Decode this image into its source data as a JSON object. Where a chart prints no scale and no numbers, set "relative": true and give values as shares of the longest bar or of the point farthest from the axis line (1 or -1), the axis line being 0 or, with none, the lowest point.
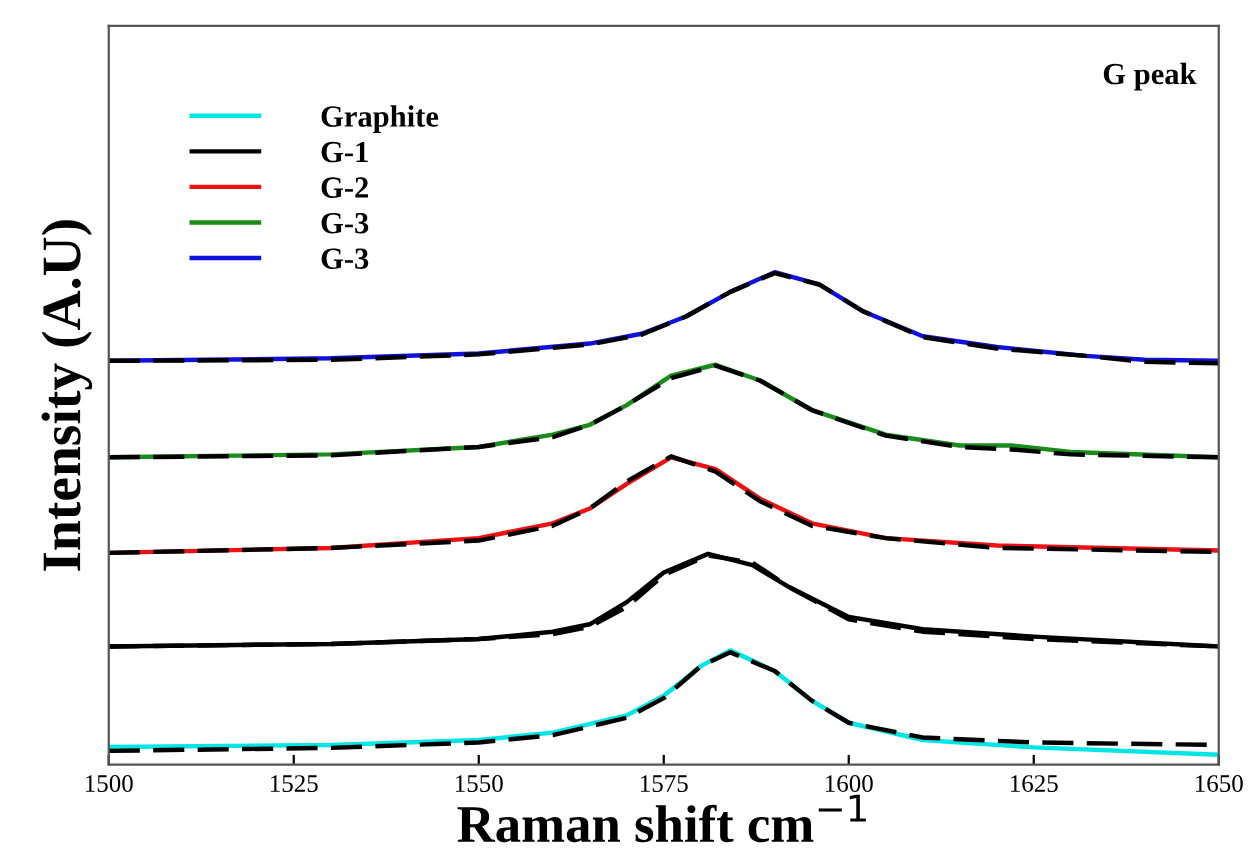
{
  "chart_data": {
    "type": "line",
    "relative": true,
    "xlabel": "Raman shift cm$^{−1}$",
    "ylabel": "Intensity (A.U)",
    "annotations": [
      "G peak"
    ],
    "xlim": [
      1500,
      1650
    ],
    "xticks": [
      1500,
      1525,
      1550,
      1575,
      1600,
      1625,
      1650
    ],
    "tick_labels": "x",
    "legend": "top left",
    "line_style": "solid",
    "series": [
      {
        "name": "Graphite",
        "color": "#00e5e5",
        "x": [
          1500,
          1530,
          1550,
          1560,
          1570,
          1575,
          1580,
          1584,
          1590,
          1595,
          1600,
          1610,
          1625,
          1650
        ],
        "values": [
          0.036,
          0.04,
          0.05,
          0.065,
          0.1,
          0.14,
          0.2,
          0.232,
          0.19,
          0.13,
          0.085,
          0.05,
          0.035,
          0.02
        ]
      },
      {
        "color": "#000000",
        "line_style": "dashed",
        "x": [
          1500,
          1530,
          1550,
          1560,
          1570,
          1575,
          1580,
          1584,
          1590,
          1595,
          1600,
          1610,
          1625,
          1650
        ],
        "values": [
          0.028,
          0.034,
          0.045,
          0.06,
          0.095,
          0.135,
          0.2,
          0.228,
          0.19,
          0.13,
          0.085,
          0.055,
          0.045,
          0.04
        ]
      },
      {
        "name": "G-1",
        "color": "#000000",
        "x": [
          1500,
          1530,
          1550,
          1560,
          1565,
          1570,
          1575,
          1581,
          1587,
          1592,
          1600,
          1610,
          1625,
          1650
        ],
        "values": [
          0.24,
          0.245,
          0.255,
          0.27,
          0.285,
          0.33,
          0.39,
          0.428,
          0.405,
          0.36,
          0.3,
          0.275,
          0.26,
          0.24
        ]
      },
      {
        "color": "#000000",
        "line_style": "dashed",
        "x": [
          1500,
          1530,
          1550,
          1560,
          1565,
          1570,
          1575,
          1581,
          1587,
          1592,
          1600,
          1610,
          1625,
          1650
        ],
        "values": [
          0.24,
          0.245,
          0.255,
          0.265,
          0.28,
          0.32,
          0.385,
          0.425,
          0.41,
          0.36,
          0.295,
          0.27,
          0.255,
          0.24
        ]
      },
      {
        "name": "G-2",
        "color": "#ee1111",
        "x": [
          1500,
          1530,
          1550,
          1560,
          1565,
          1570,
          1576,
          1582,
          1588,
          1595,
          1605,
          1620,
          1650
        ],
        "values": [
          0.43,
          0.44,
          0.46,
          0.49,
          0.52,
          0.57,
          0.624,
          0.6,
          0.54,
          0.49,
          0.46,
          0.445,
          0.435
        ]
      },
      {
        "color": "#000000",
        "line_style": "dashed",
        "x": [
          1500,
          1530,
          1550,
          1560,
          1565,
          1570,
          1576,
          1582,
          1588,
          1595,
          1605,
          1620,
          1650
        ],
        "values": [
          0.43,
          0.44,
          0.455,
          0.485,
          0.52,
          0.575,
          0.626,
          0.595,
          0.535,
          0.485,
          0.46,
          0.44,
          0.432
        ]
      },
      {
        "name": "G-3",
        "color": "#1a8c1a",
        "x": [
          1500,
          1530,
          1550,
          1560,
          1565,
          1570,
          1576,
          1582,
          1588,
          1595,
          1605,
          1615,
          1622,
          1630,
          1650
        ],
        "values": [
          0.624,
          0.63,
          0.645,
          0.67,
          0.69,
          0.73,
          0.79,
          0.812,
          0.78,
          0.72,
          0.67,
          0.648,
          0.648,
          0.635,
          0.624
        ]
      },
      {
        "color": "#000000",
        "line_style": "dashed",
        "x": [
          1500,
          1530,
          1550,
          1560,
          1565,
          1570,
          1576,
          1582,
          1588,
          1595,
          1605,
          1615,
          1622,
          1630,
          1650
        ],
        "values": [
          0.624,
          0.628,
          0.645,
          0.665,
          0.69,
          0.73,
          0.785,
          0.81,
          0.78,
          0.72,
          0.668,
          0.645,
          0.64,
          0.63,
          0.624
        ]
      },
      {
        "name": "G-3",
        "color": "#1111dd",
        "x": [
          1500,
          1530,
          1550,
          1565,
          1572,
          1578,
          1584,
          1590,
          1596,
          1602,
          1610,
          1620,
          1632,
          1640,
          1650
        ],
        "values": [
          0.82,
          0.825,
          0.835,
          0.855,
          0.875,
          0.91,
          0.96,
          1.0,
          0.975,
          0.92,
          0.87,
          0.848,
          0.83,
          0.822,
          0.82
        ]
      },
      {
        "color": "#000000",
        "line_style": "dashed",
        "x": [
          1500,
          1530,
          1550,
          1565,
          1572,
          1578,
          1584,
          1590,
          1596,
          1602,
          1610,
          1620,
          1632,
          1640,
          1650
        ],
        "values": [
          0.82,
          0.822,
          0.833,
          0.853,
          0.873,
          0.91,
          0.96,
          0.998,
          0.975,
          0.92,
          0.868,
          0.845,
          0.83,
          0.818,
          0.815
        ]
      }
    ]
  }
}
